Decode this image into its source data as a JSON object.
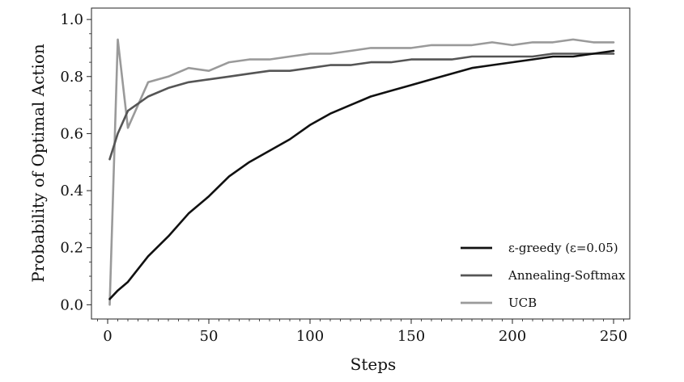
{
  "chart_data": {
    "type": "line",
    "title": "",
    "xlabel": "Steps",
    "ylabel": "Probability of Optimal Action",
    "xlim": [
      -8,
      258
    ],
    "ylim": [
      -0.05,
      1.04
    ],
    "x_ticks": [
      0,
      50,
      100,
      150,
      200,
      250
    ],
    "x_tick_labels": [
      "0",
      "50",
      "100",
      "150",
      "200",
      "250"
    ],
    "y_ticks": [
      0.0,
      0.2,
      0.4,
      0.6,
      0.8,
      1.0
    ],
    "y_tick_labels": [
      "0.0",
      "0.2",
      "0.4",
      "0.6",
      "0.8",
      "1.0"
    ],
    "grid": false,
    "legend_position": "bottom-right",
    "x": [
      1,
      5,
      10,
      20,
      30,
      40,
      50,
      60,
      70,
      80,
      90,
      100,
      110,
      120,
      130,
      140,
      150,
      160,
      170,
      180,
      190,
      200,
      210,
      220,
      230,
      240,
      250
    ],
    "series": [
      {
        "name": "ε-greedy (ε=0.05)",
        "color": "#111111",
        "values": [
          0.02,
          0.05,
          0.08,
          0.17,
          0.24,
          0.32,
          0.38,
          0.45,
          0.5,
          0.54,
          0.58,
          0.63,
          0.67,
          0.7,
          0.73,
          0.75,
          0.77,
          0.79,
          0.81,
          0.83,
          0.84,
          0.85,
          0.86,
          0.87,
          0.87,
          0.88,
          0.89
        ]
      },
      {
        "name": "Annealing-Softmax",
        "color": "#555555",
        "values": [
          0.51,
          0.6,
          0.68,
          0.73,
          0.76,
          0.78,
          0.79,
          0.8,
          0.81,
          0.82,
          0.82,
          0.83,
          0.84,
          0.84,
          0.85,
          0.85,
          0.86,
          0.86,
          0.86,
          0.87,
          0.87,
          0.87,
          0.87,
          0.88,
          0.88,
          0.88,
          0.88
        ]
      },
      {
        "name": "UCB",
        "color": "#9a9a9a",
        "values": [
          0.0,
          0.93,
          0.62,
          0.78,
          0.8,
          0.83,
          0.82,
          0.85,
          0.86,
          0.86,
          0.87,
          0.88,
          0.88,
          0.89,
          0.9,
          0.9,
          0.9,
          0.91,
          0.91,
          0.91,
          0.92,
          0.91,
          0.92,
          0.92,
          0.93,
          0.92,
          0.92
        ]
      }
    ]
  }
}
